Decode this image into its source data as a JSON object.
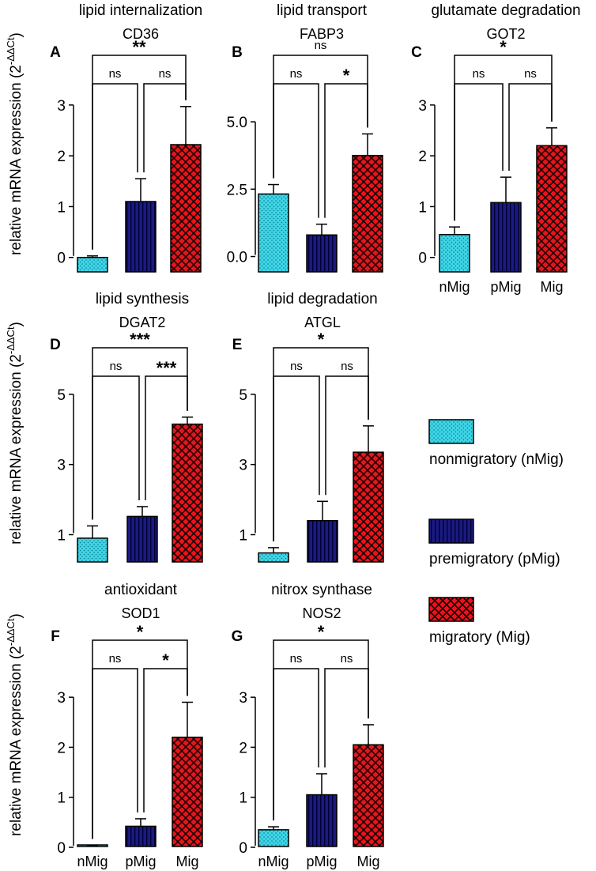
{
  "figure": {
    "ylabel_main": "relative mRNA expression (2",
    "ylabel_sup": "-ΔΔCt",
    "ylabel_close": ")"
  },
  "legend": [
    {
      "key": "nMig",
      "label": "nonmigratory (nMig)"
    },
    {
      "key": "pMig",
      "label": "premigratory (pMig)"
    },
    {
      "key": "Mig",
      "label": "migratory (Mig)"
    }
  ],
  "colors": {
    "nMig": "#3ed6e8",
    "pMig": "#1a1a80",
    "Mig": "#e8141c"
  },
  "chart_data": [
    {
      "letter": "A",
      "category": "lipid internalization",
      "gene": "CD36",
      "type": "bar",
      "categories": [
        "nMig",
        "pMig",
        "Mig"
      ],
      "values": [
        0.0,
        1.1,
        2.22
      ],
      "errors": [
        0.03,
        0.45,
        0.75
      ],
      "ylim": [
        -0.3,
        3.2
      ],
      "ticks": [
        0,
        1,
        2,
        3
      ],
      "tick_labels": [
        "0",
        "1",
        "2",
        "3"
      ],
      "show_xticks": false,
      "comparisons": [
        {
          "from": 0,
          "to": 1,
          "label": "ns"
        },
        {
          "from": 1,
          "to": 2,
          "label": "ns"
        },
        {
          "from": 0,
          "to": 2,
          "label": "**"
        }
      ]
    },
    {
      "letter": "B",
      "category": "lipid transport",
      "gene": "FABP3",
      "type": "bar",
      "categories": [
        "nMig",
        "pMig",
        "Mig"
      ],
      "values": [
        2.32,
        0.8,
        3.75
      ],
      "errors": [
        0.35,
        0.4,
        0.8
      ],
      "ylim": [
        -0.6,
        6.0
      ],
      "ticks": [
        0,
        2.5,
        5
      ],
      "tick_labels": [
        "0.0",
        "2.5",
        "5.0"
      ],
      "show_xticks": false,
      "comparisons": [
        {
          "from": 0,
          "to": 1,
          "label": "ns"
        },
        {
          "from": 1,
          "to": 2,
          "label": "*"
        },
        {
          "from": 0,
          "to": 2,
          "label": "ns"
        }
      ]
    },
    {
      "letter": "C",
      "category": "glutamate degradation",
      "gene": "GOT2",
      "type": "bar",
      "categories": [
        "nMig",
        "pMig",
        "Mig"
      ],
      "values": [
        0.45,
        1.08,
        2.2
      ],
      "errors": [
        0.15,
        0.5,
        0.35
      ],
      "ylim": [
        -0.3,
        3.2
      ],
      "ticks": [
        0,
        1,
        2,
        3
      ],
      "tick_labels": [
        "0",
        "1",
        "2",
        "3"
      ],
      "show_xticks": true,
      "comparisons": [
        {
          "from": 0,
          "to": 1,
          "label": "ns"
        },
        {
          "from": 1,
          "to": 2,
          "label": "ns"
        },
        {
          "from": 0,
          "to": 2,
          "label": "*"
        }
      ]
    },
    {
      "letter": "D",
      "category": "lipid synthesis",
      "gene": "DGAT2",
      "type": "bar",
      "categories": [
        "nMig",
        "pMig",
        "Mig"
      ],
      "values": [
        0.9,
        1.52,
        4.15
      ],
      "errors": [
        0.35,
        0.28,
        0.2
      ],
      "ylim": [
        0.2,
        5.2
      ],
      "ticks": [
        1,
        3,
        5
      ],
      "tick_labels": [
        "1",
        "3",
        "5"
      ],
      "show_xticks": false,
      "comparisons": [
        {
          "from": 0,
          "to": 1,
          "label": "ns"
        },
        {
          "from": 1,
          "to": 2,
          "label": "***"
        },
        {
          "from": 0,
          "to": 2,
          "label": "***"
        }
      ]
    },
    {
      "letter": "E",
      "category": "lipid degradation",
      "gene": "ATGL",
      "type": "bar",
      "categories": [
        "nMig",
        "pMig",
        "Mig"
      ],
      "values": [
        0.48,
        1.4,
        3.35
      ],
      "errors": [
        0.15,
        0.55,
        0.75
      ],
      "ylim": [
        0.2,
        5.2
      ],
      "ticks": [
        1,
        3,
        5
      ],
      "tick_labels": [
        "1",
        "3",
        "5"
      ],
      "show_xticks": false,
      "comparisons": [
        {
          "from": 0,
          "to": 1,
          "label": "ns"
        },
        {
          "from": 1,
          "to": 2,
          "label": "ns"
        },
        {
          "from": 0,
          "to": 2,
          "label": "*"
        }
      ]
    },
    {
      "letter": "F",
      "category": "antioxidant",
      "gene": "SOD1",
      "type": "bar",
      "categories": [
        "nMig",
        "pMig",
        "Mig"
      ],
      "values": [
        0.02,
        0.42,
        2.2
      ],
      "errors": [
        0.02,
        0.15,
        0.7
      ],
      "ylim": [
        0,
        3.35
      ],
      "ticks": [
        0,
        1,
        2,
        3
      ],
      "tick_labels": [
        "0",
        "1",
        "2",
        "3"
      ],
      "show_xticks": true,
      "comparisons": [
        {
          "from": 0,
          "to": 1,
          "label": "ns"
        },
        {
          "from": 1,
          "to": 2,
          "label": "*"
        },
        {
          "from": 0,
          "to": 2,
          "label": "*"
        }
      ]
    },
    {
      "letter": "G",
      "category": "nitrox synthase",
      "gene": "NOS2",
      "type": "bar",
      "categories": [
        "nMig",
        "pMig",
        "Mig"
      ],
      "values": [
        0.35,
        1.05,
        2.05
      ],
      "errors": [
        0.06,
        0.42,
        0.4
      ],
      "ylim": [
        0,
        3.35
      ],
      "ticks": [
        0,
        1,
        2,
        3
      ],
      "tick_labels": [
        "0",
        "1",
        "2",
        "3"
      ],
      "show_xticks": true,
      "comparisons": [
        {
          "from": 0,
          "to": 1,
          "label": "ns"
        },
        {
          "from": 1,
          "to": 2,
          "label": "ns"
        },
        {
          "from": 0,
          "to": 2,
          "label": "*"
        }
      ]
    }
  ]
}
